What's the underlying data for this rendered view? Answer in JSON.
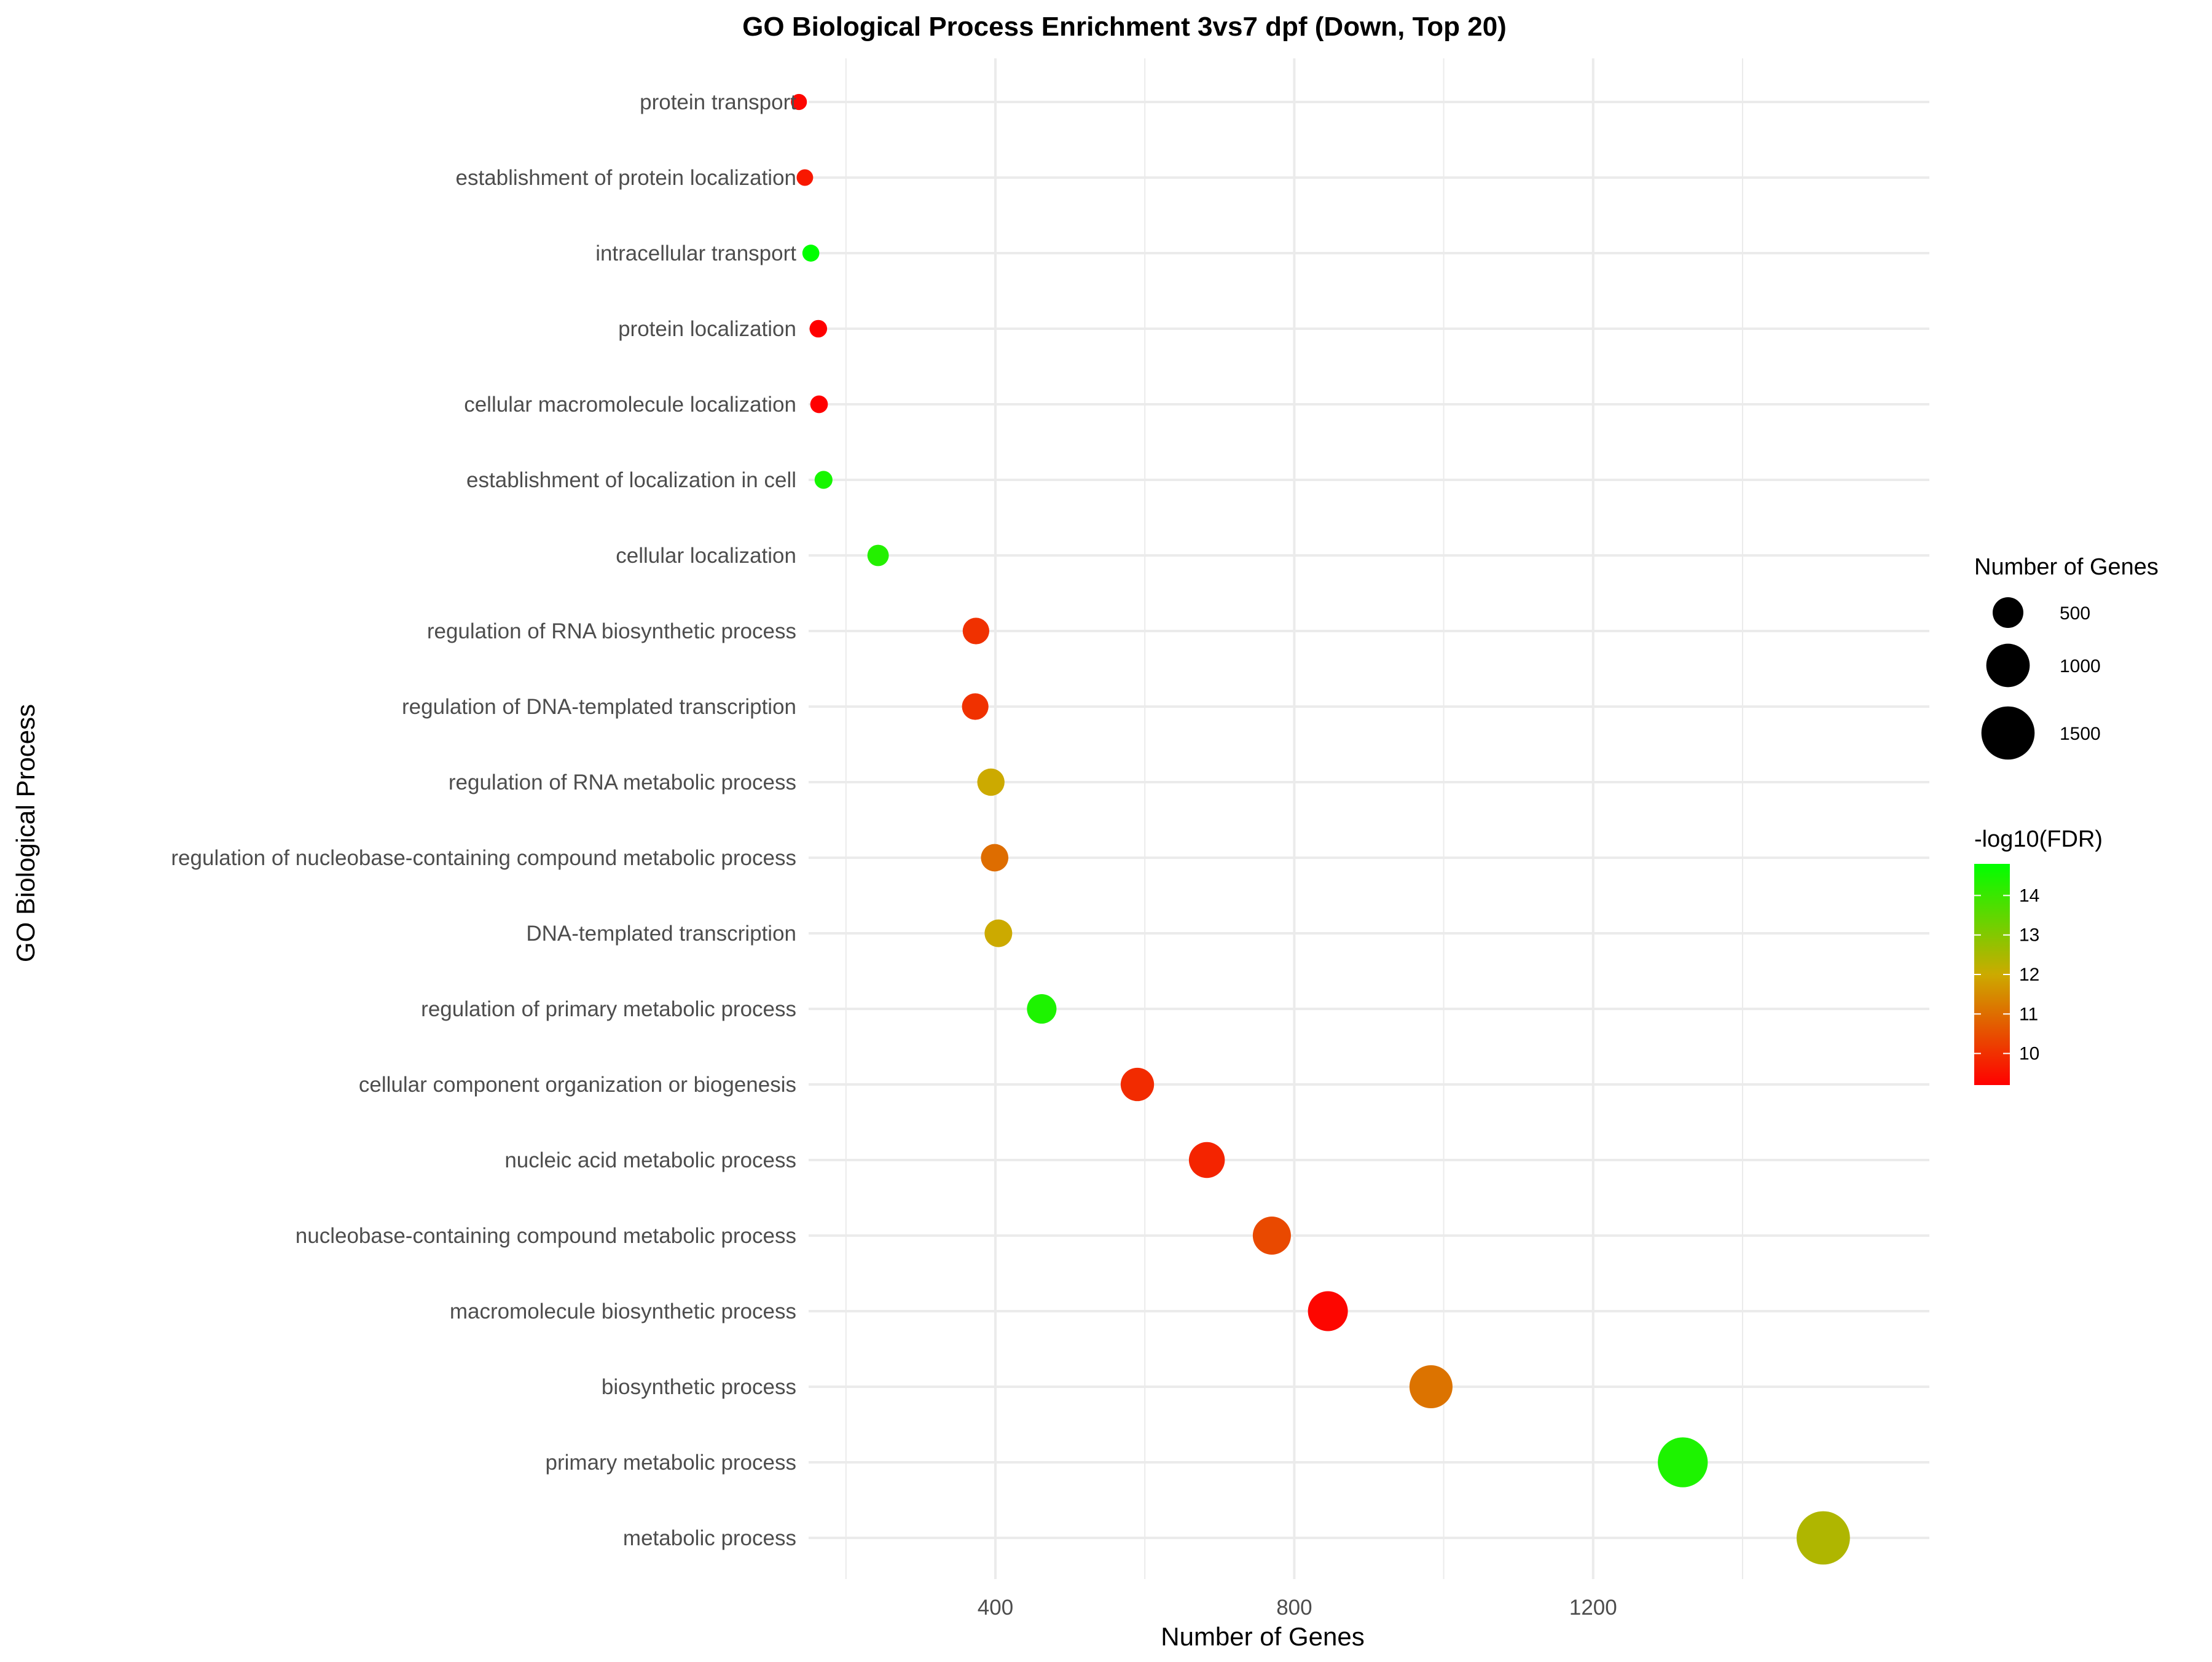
{
  "chart_data": {
    "type": "scatter",
    "title": "GO Biological Process Enrichment 3vs7 dpf (Down, Top 20)",
    "xlabel": "Number of Genes",
    "ylabel": "GO Biological Process",
    "xlim": [
      150,
      1650
    ],
    "x_ticks": [
      400,
      800,
      1200
    ],
    "x_tick_labels": [
      "400",
      "800",
      "1200"
    ],
    "grid": true,
    "size_legend": {
      "title": "Number of Genes",
      "values": [
        500,
        1000,
        1500
      ],
      "labels": [
        "500",
        "1000",
        "1500"
      ]
    },
    "color_legend": {
      "title": "-log10(FDR)",
      "range": [
        9.2,
        14.8
      ],
      "ticks": [
        10,
        11,
        12,
        13,
        14
      ],
      "tick_labels": [
        "10",
        "11",
        "12",
        "13",
        "14"
      ],
      "low_color": "#ff0000",
      "high_color": "#00ff00"
    },
    "points": [
      {
        "term": "protein transport",
        "genes": 137,
        "neglog10_fdr": 9.3
      },
      {
        "term": "establishment of protein localization",
        "genes": 145,
        "neglog10_fdr": 9.6
      },
      {
        "term": "intracellular transport",
        "genes": 153,
        "neglog10_fdr": 14.8
      },
      {
        "term": "protein localization",
        "genes": 163,
        "neglog10_fdr": 9.2
      },
      {
        "term": "cellular macromolecule localization",
        "genes": 164,
        "neglog10_fdr": 9.2
      },
      {
        "term": "establishment of localization in cell",
        "genes": 170,
        "neglog10_fdr": 14.5
      },
      {
        "term": "cellular localization",
        "genes": 243,
        "neglog10_fdr": 14.3
      },
      {
        "term": "regulation of RNA biosynthetic process",
        "genes": 374,
        "neglog10_fdr": 10.0
      },
      {
        "term": "regulation of DNA-templated transcription",
        "genes": 373,
        "neglog10_fdr": 10.0
      },
      {
        "term": "regulation of RNA metabolic process",
        "genes": 394,
        "neglog10_fdr": 12.0
      },
      {
        "term": "regulation of nucleobase-containing compound metabolic process",
        "genes": 399,
        "neglog10_fdr": 11.0
      },
      {
        "term": "DNA-templated transcription",
        "genes": 404,
        "neglog10_fdr": 12.0
      },
      {
        "term": "regulation of primary metabolic process",
        "genes": 462,
        "neglog10_fdr": 14.4
      },
      {
        "term": "cellular component organization or biogenesis",
        "genes": 590,
        "neglog10_fdr": 9.9
      },
      {
        "term": "nucleic acid metabolic process",
        "genes": 683,
        "neglog10_fdr": 9.8
      },
      {
        "term": "nucleobase-containing compound metabolic process",
        "genes": 770,
        "neglog10_fdr": 10.4
      },
      {
        "term": "macromolecule biosynthetic process",
        "genes": 845,
        "neglog10_fdr": 9.3
      },
      {
        "term": "biosynthetic process",
        "genes": 983,
        "neglog10_fdr": 11.1
      },
      {
        "term": "primary metabolic process",
        "genes": 1320,
        "neglog10_fdr": 14.4
      },
      {
        "term": "metabolic process",
        "genes": 1508,
        "neglog10_fdr": 12.4
      }
    ]
  }
}
